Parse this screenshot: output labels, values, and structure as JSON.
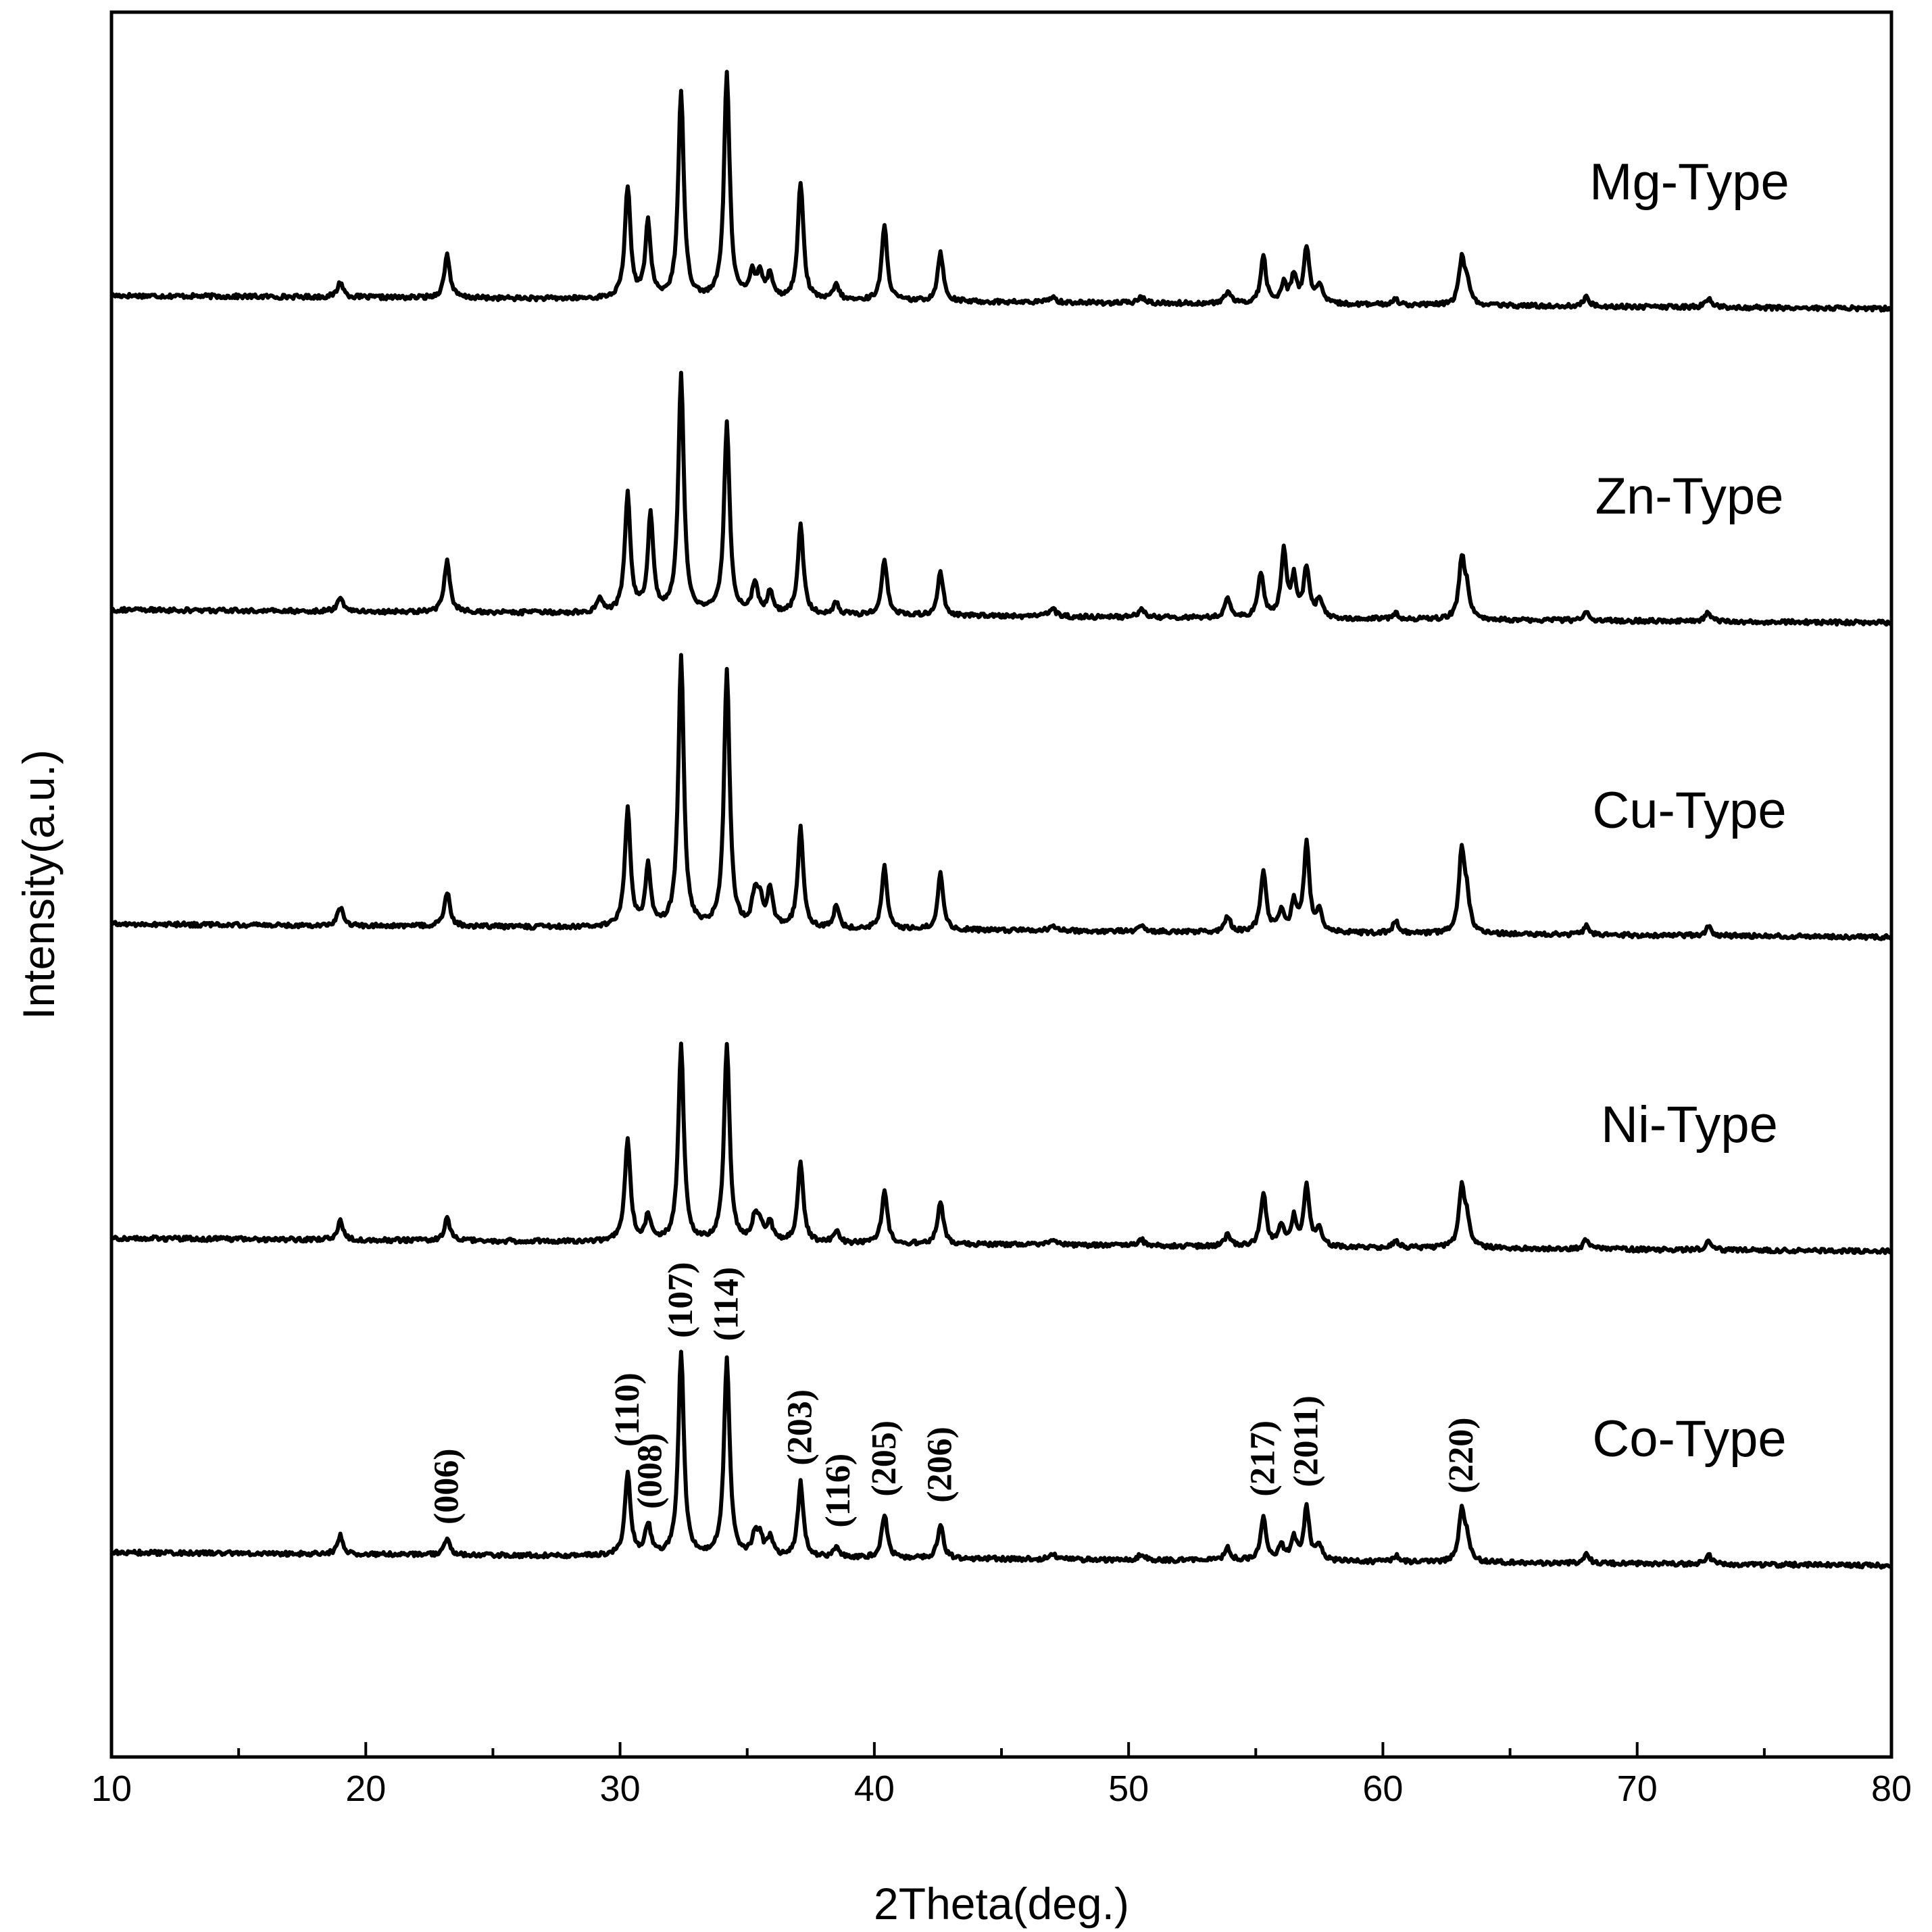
{
  "chart_data": {
    "type": "line",
    "xlabel": "2Theta(deg.)",
    "ylabel": "Intensity(a.u.)",
    "xlim": [
      10,
      80
    ],
    "x_ticks": [
      10,
      20,
      30,
      40,
      50,
      60,
      70,
      80
    ],
    "y_ticks_shown": false,
    "series": [
      {
        "name": "Mg-Type",
        "offset": 4,
        "baseline": 0.06,
        "slope": -0.0006,
        "peaks": [
          [
            19.0,
            0.05
          ],
          [
            23.2,
            0.14
          ],
          [
            30.3,
            0.36
          ],
          [
            31.1,
            0.24
          ],
          [
            32.4,
            0.67
          ],
          [
            34.2,
            0.73
          ],
          [
            35.2,
            0.08
          ],
          [
            35.5,
            0.08
          ],
          [
            35.9,
            0.08
          ],
          [
            37.1,
            0.38
          ],
          [
            38.5,
            0.05
          ],
          [
            40.4,
            0.24
          ],
          [
            42.6,
            0.16
          ],
          [
            47.0,
            0.02
          ],
          [
            50.5,
            0.02
          ],
          [
            53.9,
            0.04
          ],
          [
            55.3,
            0.15
          ],
          [
            56.1,
            0.06
          ],
          [
            56.5,
            0.09
          ],
          [
            57.0,
            0.18
          ],
          [
            57.5,
            0.06
          ],
          [
            60.5,
            0.02
          ],
          [
            63.1,
            0.14
          ],
          [
            63.3,
            0.07
          ],
          [
            68.0,
            0.03
          ],
          [
            72.8,
            0.03
          ]
        ]
      },
      {
        "name": "Zn-Type",
        "offset": 3,
        "baseline": 0.06,
        "slope": -0.0006,
        "peaks": [
          [
            19.0,
            0.05
          ],
          [
            23.2,
            0.17
          ],
          [
            29.2,
            0.05
          ],
          [
            30.3,
            0.38
          ],
          [
            31.2,
            0.31
          ],
          [
            32.4,
            0.77
          ],
          [
            34.2,
            0.61
          ],
          [
            35.3,
            0.1
          ],
          [
            35.9,
            0.07
          ],
          [
            37.1,
            0.29
          ],
          [
            38.5,
            0.04
          ],
          [
            40.4,
            0.18
          ],
          [
            42.6,
            0.14
          ],
          [
            47.0,
            0.03
          ],
          [
            50.5,
            0.03
          ],
          [
            53.9,
            0.06
          ],
          [
            55.2,
            0.14
          ],
          [
            56.1,
            0.21
          ],
          [
            56.5,
            0.12
          ],
          [
            57.0,
            0.16
          ],
          [
            57.5,
            0.06
          ],
          [
            60.5,
            0.02
          ],
          [
            63.1,
            0.19
          ],
          [
            63.3,
            0.08
          ],
          [
            68.0,
            0.03
          ],
          [
            72.8,
            0.03
          ]
        ]
      },
      {
        "name": "Cu-Type",
        "offset": 2,
        "baseline": 0.06,
        "slope": -0.0006,
        "peaks": [
          [
            19.0,
            0.06
          ],
          [
            23.2,
            0.11
          ],
          [
            30.3,
            0.38
          ],
          [
            31.1,
            0.19
          ],
          [
            32.4,
            0.87
          ],
          [
            34.2,
            0.83
          ],
          [
            35.3,
            0.1
          ],
          [
            35.5,
            0.08
          ],
          [
            35.9,
            0.12
          ],
          [
            37.1,
            0.32
          ],
          [
            38.5,
            0.07
          ],
          [
            40.4,
            0.2
          ],
          [
            42.6,
            0.18
          ],
          [
            47.0,
            0.02
          ],
          [
            50.5,
            0.02
          ],
          [
            53.9,
            0.05
          ],
          [
            55.3,
            0.2
          ],
          [
            56.0,
            0.06
          ],
          [
            56.5,
            0.09
          ],
          [
            57.0,
            0.28
          ],
          [
            57.5,
            0.07
          ],
          [
            60.5,
            0.04
          ],
          [
            63.1,
            0.26
          ],
          [
            63.3,
            0.1
          ],
          [
            68.0,
            0.03
          ],
          [
            72.8,
            0.03
          ]
        ]
      },
      {
        "name": "Ni-Type",
        "offset": 1,
        "baseline": 0.06,
        "slope": -0.0006,
        "peaks": [
          [
            19.0,
            0.06
          ],
          [
            23.2,
            0.07
          ],
          [
            30.3,
            0.33
          ],
          [
            31.1,
            0.08
          ],
          [
            32.4,
            0.63
          ],
          [
            34.2,
            0.63
          ],
          [
            35.3,
            0.07
          ],
          [
            35.5,
            0.06
          ],
          [
            35.9,
            0.06
          ],
          [
            37.1,
            0.26
          ],
          [
            38.5,
            0.04
          ],
          [
            40.4,
            0.17
          ],
          [
            42.6,
            0.14
          ],
          [
            47.0,
            0.02
          ],
          [
            50.5,
            0.02
          ],
          [
            53.9,
            0.04
          ],
          [
            55.3,
            0.17
          ],
          [
            56.0,
            0.06
          ],
          [
            56.5,
            0.09
          ],
          [
            57.0,
            0.19
          ],
          [
            57.5,
            0.06
          ],
          [
            60.5,
            0.02
          ],
          [
            63.1,
            0.19
          ],
          [
            63.3,
            0.08
          ],
          [
            68.0,
            0.03
          ],
          [
            72.8,
            0.03
          ]
        ]
      },
      {
        "name": "Co-Type",
        "offset": 0,
        "baseline": 0.06,
        "slope": -0.0006,
        "peaks": [
          [
            19.0,
            0.06
          ],
          [
            23.2,
            0.05
          ],
          [
            30.3,
            0.27
          ],
          [
            31.1,
            0.1
          ],
          [
            32.4,
            0.66
          ],
          [
            34.2,
            0.64
          ],
          [
            35.3,
            0.06
          ],
          [
            35.5,
            0.06
          ],
          [
            35.9,
            0.06
          ],
          [
            37.1,
            0.24
          ],
          [
            38.5,
            0.03
          ],
          [
            40.4,
            0.14
          ],
          [
            42.6,
            0.11
          ],
          [
            47.0,
            0.02
          ],
          [
            50.5,
            0.02
          ],
          [
            53.9,
            0.04
          ],
          [
            55.3,
            0.14
          ],
          [
            56.0,
            0.05
          ],
          [
            56.5,
            0.07
          ],
          [
            57.0,
            0.17
          ],
          [
            57.5,
            0.05
          ],
          [
            60.5,
            0.02
          ],
          [
            63.1,
            0.16
          ],
          [
            63.3,
            0.07
          ],
          [
            68.0,
            0.03
          ],
          [
            72.8,
            0.03
          ]
        ]
      }
    ],
    "peak_annotations": [
      {
        "text": "(006)",
        "x": 23.2,
        "y": 0.15
      },
      {
        "text": "(110)",
        "x": 30.3,
        "y": 0.4
      },
      {
        "text": "(008)",
        "x": 31.2,
        "y": 0.2
      },
      {
        "text": "(107)",
        "x": 32.4,
        "y": 0.75
      },
      {
        "text": "(114)",
        "x": 34.2,
        "y": 0.74
      },
      {
        "text": "(203)",
        "x": 37.1,
        "y": 0.34
      },
      {
        "text": "(116)",
        "x": 38.6,
        "y": 0.14
      },
      {
        "text": "(205)",
        "x": 40.4,
        "y": 0.24
      },
      {
        "text": "(206)",
        "x": 42.6,
        "y": 0.22
      },
      {
        "text": "(217)",
        "x": 55.3,
        "y": 0.24
      },
      {
        "text": "(2011)",
        "x": 57.0,
        "y": 0.27
      },
      {
        "text": "(220)",
        "x": 63.1,
        "y": 0.25
      }
    ]
  }
}
